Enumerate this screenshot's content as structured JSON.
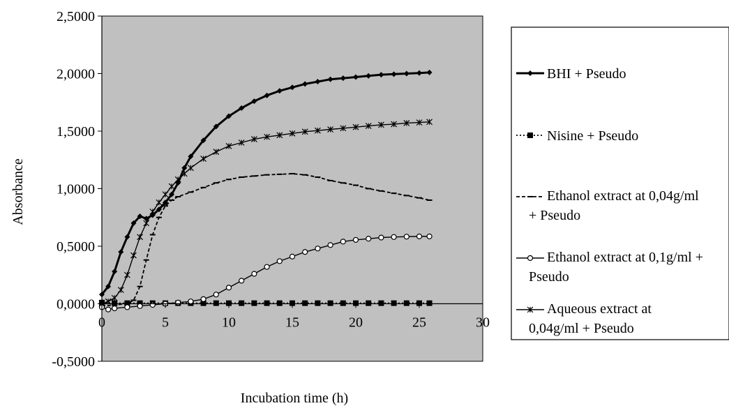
{
  "chart_data": {
    "type": "line",
    "title": "",
    "xlabel": "Incubation time (h)",
    "ylabel": "Absorbance",
    "xlim": [
      0,
      30
    ],
    "ylim": [
      -0.5,
      2.5
    ],
    "x_ticks": [
      "0",
      "5",
      "10",
      "15",
      "20",
      "25",
      "30"
    ],
    "y_ticks": [
      "2,5000",
      "2,0000",
      "1,5000",
      "1,0000",
      "0,5000",
      "0,0000",
      "-0,5000"
    ],
    "plot_background": "#c0c0c0",
    "grid": false,
    "legend_position": "right",
    "series": [
      {
        "name": "BHI + Pseudo",
        "legend_lines": [
          "BHI + Pseudo"
        ],
        "marker": "diamond",
        "line_style": "solid-thick",
        "color": "#000000",
        "x": [
          0,
          0.5,
          1,
          1.5,
          2,
          2.5,
          3,
          3.5,
          4,
          4.5,
          5,
          5.5,
          6,
          6.5,
          7,
          8,
          9,
          10,
          11,
          12,
          13,
          14,
          15,
          16,
          17,
          18,
          19,
          20,
          21,
          22,
          23,
          24,
          25,
          25.8
        ],
        "y": [
          0.08,
          0.15,
          0.28,
          0.45,
          0.58,
          0.7,
          0.76,
          0.74,
          0.77,
          0.82,
          0.88,
          0.95,
          1.05,
          1.18,
          1.28,
          1.42,
          1.54,
          1.63,
          1.7,
          1.76,
          1.81,
          1.85,
          1.88,
          1.91,
          1.93,
          1.95,
          1.96,
          1.97,
          1.98,
          1.99,
          1.995,
          2.0,
          2.005,
          2.01
        ]
      },
      {
        "name": "Nisine + Pseudo",
        "legend_lines": [
          "Nisine + Pseudo"
        ],
        "marker": "square",
        "line_style": "dotted",
        "color": "#000000",
        "x": [
          0,
          1,
          2,
          3,
          4,
          5,
          6,
          7,
          8,
          9,
          10,
          11,
          12,
          13,
          14,
          15,
          16,
          17,
          18,
          19,
          20,
          21,
          22,
          23,
          24,
          25,
          25.8
        ],
        "y": [
          0.01,
          0.005,
          0.005,
          0.005,
          0.005,
          0.005,
          0.005,
          0.005,
          0.005,
          0.005,
          0.005,
          0.005,
          0.005,
          0.005,
          0.005,
          0.005,
          0.005,
          0.005,
          0.005,
          0.005,
          0.005,
          0.005,
          0.005,
          0.005,
          0.005,
          0.005,
          0.005
        ]
      },
      {
        "name": "Ethanol extract at 0,04g/ml + Pseudo",
        "legend_lines": [
          "Ethanol extract at 0,04g/ml",
          "+ Pseudo"
        ],
        "marker": "dash",
        "line_style": "dashed",
        "color": "#000000",
        "x": [
          0,
          1,
          2,
          2.5,
          3,
          3.5,
          4,
          4.5,
          5,
          5.5,
          6,
          7,
          8,
          9,
          10,
          11,
          12,
          13,
          14,
          15,
          16,
          17,
          18,
          19,
          20,
          21,
          22,
          23,
          24,
          25,
          25.8
        ],
        "y": [
          -0.02,
          -0.01,
          0.0,
          0.03,
          0.15,
          0.38,
          0.6,
          0.75,
          0.85,
          0.9,
          0.93,
          0.97,
          1.01,
          1.05,
          1.08,
          1.1,
          1.11,
          1.12,
          1.125,
          1.13,
          1.12,
          1.1,
          1.07,
          1.05,
          1.03,
          1.0,
          0.98,
          0.96,
          0.94,
          0.92,
          0.9
        ]
      },
      {
        "name": "Ethanol extract at 0,1g/ml + Pseudo",
        "legend_lines": [
          "Ethanol extract at 0,1g/ml +",
          "Pseudo"
        ],
        "marker": "circle-open",
        "line_style": "solid",
        "color": "#000000",
        "x": [
          0,
          0.5,
          1,
          2,
          3,
          4,
          5,
          6,
          7,
          8,
          9,
          10,
          11,
          12,
          13,
          14,
          15,
          16,
          17,
          18,
          19,
          20,
          21,
          22,
          23,
          24,
          25,
          25.8
        ],
        "y": [
          -0.03,
          -0.05,
          -0.04,
          -0.03,
          -0.02,
          -0.01,
          0.0,
          0.01,
          0.02,
          0.04,
          0.08,
          0.14,
          0.2,
          0.26,
          0.32,
          0.37,
          0.41,
          0.45,
          0.48,
          0.51,
          0.54,
          0.555,
          0.565,
          0.575,
          0.58,
          0.583,
          0.585,
          0.585
        ]
      },
      {
        "name": "Aqueous extract at 0,04g/ml + Pseudo",
        "legend_lines": [
          "Aqueous extract at",
          "0,04g/ml + Pseudo"
        ],
        "marker": "star",
        "line_style": "solid",
        "color": "#000000",
        "x": [
          0,
          0.5,
          1,
          1.5,
          2,
          2.5,
          3,
          3.5,
          4,
          4.5,
          5,
          5.5,
          6,
          6.5,
          7,
          8,
          9,
          10,
          11,
          12,
          13,
          14,
          15,
          16,
          17,
          18,
          19,
          20,
          21,
          22,
          23,
          24,
          25,
          25.8
        ],
        "y": [
          0.0,
          0.02,
          0.05,
          0.12,
          0.25,
          0.42,
          0.58,
          0.7,
          0.8,
          0.88,
          0.95,
          1.02,
          1.08,
          1.13,
          1.18,
          1.26,
          1.32,
          1.37,
          1.4,
          1.43,
          1.45,
          1.465,
          1.48,
          1.495,
          1.505,
          1.515,
          1.525,
          1.535,
          1.545,
          1.555,
          1.56,
          1.57,
          1.575,
          1.58
        ]
      }
    ]
  }
}
